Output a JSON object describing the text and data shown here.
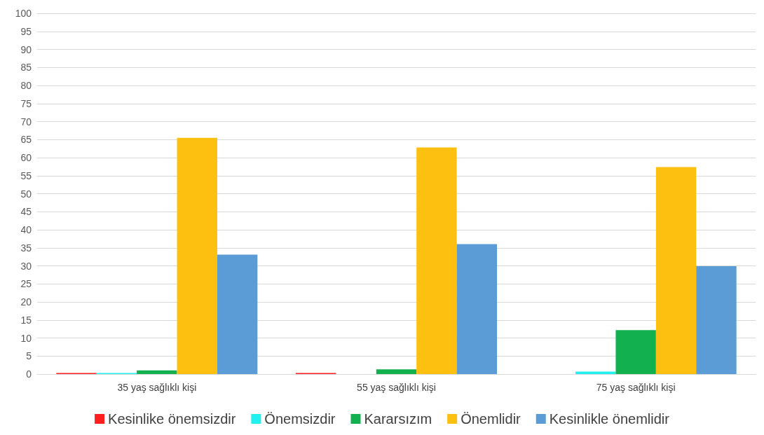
{
  "chart_data": {
    "type": "bar",
    "categories": [
      "35 yaş sağlıklı kişi",
      "55 yaş sağlıklı kişi",
      "75 yaş sağlıklı kişi"
    ],
    "series": [
      {
        "name": "Kesinlike önemsizdir",
        "color": "#ff1f1f",
        "values": [
          0.3,
          0.3,
          0
        ]
      },
      {
        "name": "Önemsizdir",
        "color": "#20f0f0",
        "values": [
          0.3,
          0,
          0.7
        ]
      },
      {
        "name": "Kararsızım",
        "color": "#12b04f",
        "values": [
          1,
          1.3,
          12.2
        ]
      },
      {
        "name": "Önemlidir",
        "color": "#fdc010",
        "values": [
          65.5,
          62.8,
          57.4
        ]
      },
      {
        "name": "Kesinlikle önemlidir",
        "color": "#5b9bd6",
        "values": [
          33.1,
          36,
          29.9
        ]
      }
    ],
    "ylim": [
      0,
      100
    ],
    "yticks": [
      0,
      5,
      10,
      15,
      20,
      25,
      30,
      35,
      40,
      45,
      50,
      55,
      60,
      65,
      70,
      75,
      80,
      85,
      90,
      95,
      100
    ],
    "grid": "y",
    "legend": "bottom"
  }
}
